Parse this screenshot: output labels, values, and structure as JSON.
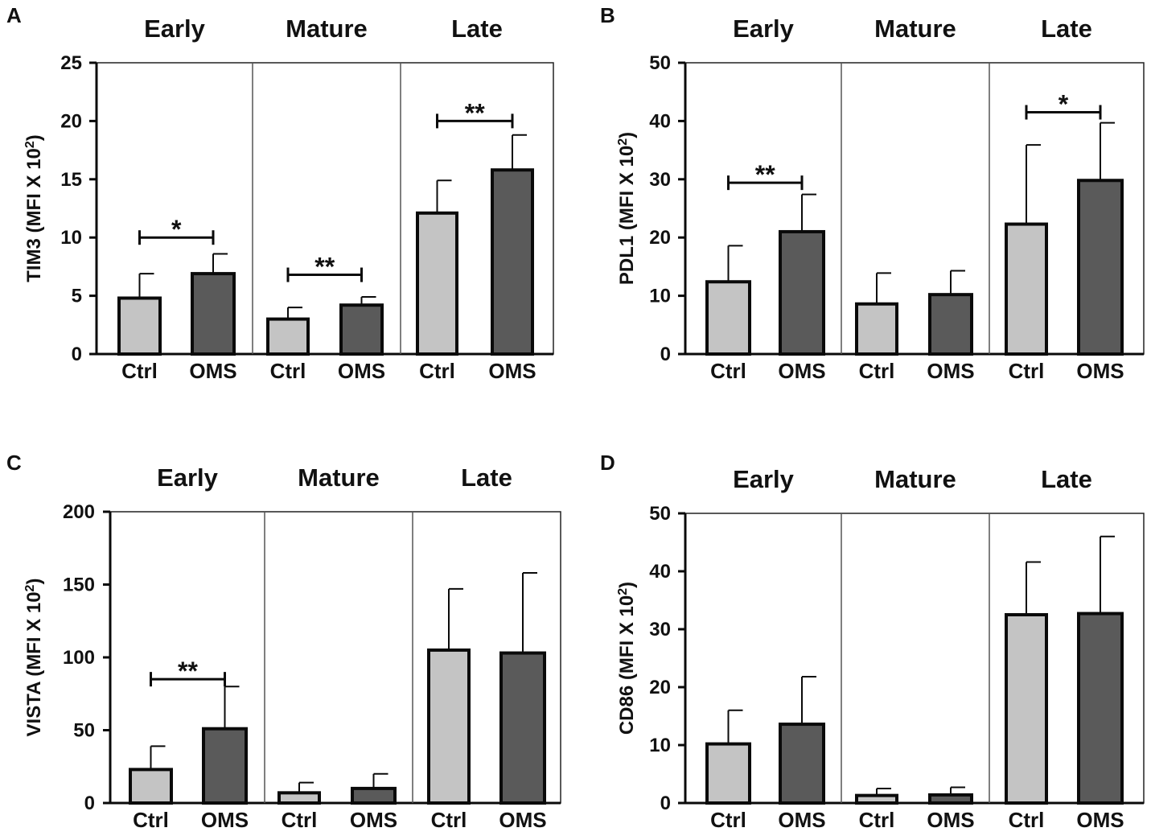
{
  "chart_data": [
    {
      "panel": "A",
      "type": "bar",
      "ylabel": "TIM3 (MFI X 10",
      "ylabel_sup": "2",
      "ylabel_tail": ")",
      "ylim": [
        0,
        25
      ],
      "yticks": [
        0,
        5,
        10,
        15,
        20,
        25
      ],
      "groups": [
        {
          "title": "Early",
          "bars": [
            {
              "label": "Ctrl",
              "value": 4.8,
              "error": 2.1
            },
            {
              "label": "OMS",
              "value": 6.9,
              "error": 1.7
            }
          ],
          "sig": {
            "text": "*",
            "y": 10
          }
        },
        {
          "title": "Mature",
          "bars": [
            {
              "label": "Ctrl",
              "value": 3.0,
              "error": 1.0
            },
            {
              "label": "OMS",
              "value": 4.2,
              "error": 0.7
            }
          ],
          "sig": {
            "text": "**",
            "y": 6.8
          }
        },
        {
          "title": "Late",
          "bars": [
            {
              "label": "Ctrl",
              "value": 12.1,
              "error": 2.8
            },
            {
              "label": "OMS",
              "value": 15.8,
              "error": 3.0
            }
          ],
          "sig": {
            "text": "**",
            "y": 20
          }
        }
      ]
    },
    {
      "panel": "B",
      "type": "bar",
      "ylabel": "PDL1 (MFI X 10",
      "ylabel_sup": "2",
      "ylabel_tail": ")",
      "ylim": [
        0,
        50
      ],
      "yticks": [
        0,
        10,
        20,
        30,
        40,
        50
      ],
      "groups": [
        {
          "title": "Early",
          "bars": [
            {
              "label": "Ctrl",
              "value": 12.4,
              "error": 6.2
            },
            {
              "label": "OMS",
              "value": 21.0,
              "error": 6.4
            }
          ],
          "sig": {
            "text": "**",
            "y": 29.4
          }
        },
        {
          "title": "Mature",
          "bars": [
            {
              "label": "Ctrl",
              "value": 8.6,
              "error": 5.3
            },
            {
              "label": "OMS",
              "value": 10.2,
              "error": 4.1
            }
          ],
          "sig": null
        },
        {
          "title": "Late",
          "bars": [
            {
              "label": "Ctrl",
              "value": 22.3,
              "error": 13.6
            },
            {
              "label": "OMS",
              "value": 29.8,
              "error": 9.9
            }
          ],
          "sig": {
            "text": "*",
            "y": 41.5
          }
        }
      ]
    },
    {
      "panel": "C",
      "type": "bar",
      "ylabel": "VISTA  (MFI X 10",
      "ylabel_sup": "2",
      "ylabel_tail": ")",
      "ylim": [
        0,
        200
      ],
      "yticks": [
        0,
        50,
        100,
        150,
        200
      ],
      "groups": [
        {
          "title": "Early",
          "bars": [
            {
              "label": "Ctrl",
              "value": 23,
              "error": 16
            },
            {
              "label": "OMS",
              "value": 51,
              "error": 29
            }
          ],
          "sig": {
            "text": "**",
            "y": 85
          }
        },
        {
          "title": "Mature",
          "bars": [
            {
              "label": "Ctrl",
              "value": 7,
              "error": 7
            },
            {
              "label": "OMS",
              "value": 10,
              "error": 10
            }
          ],
          "sig": null
        },
        {
          "title": "Late",
          "bars": [
            {
              "label": "Ctrl",
              "value": 105,
              "error": 42
            },
            {
              "label": "OMS",
              "value": 103,
              "error": 55
            }
          ],
          "sig": null
        }
      ]
    },
    {
      "panel": "D",
      "type": "bar",
      "ylabel": "CD86 (MFI X 10",
      "ylabel_sup": "2",
      "ylabel_tail": ")",
      "ylim": [
        0,
        50
      ],
      "yticks": [
        0,
        10,
        20,
        30,
        40,
        50
      ],
      "groups": [
        {
          "title": "Early",
          "bars": [
            {
              "label": "Ctrl",
              "value": 10.2,
              "error": 5.8
            },
            {
              "label": "OMS",
              "value": 13.6,
              "error": 8.2
            }
          ],
          "sig": null
        },
        {
          "title": "Mature",
          "bars": [
            {
              "label": "Ctrl",
              "value": 1.3,
              "error": 1.2
            },
            {
              "label": "OMS",
              "value": 1.4,
              "error": 1.3
            }
          ],
          "sig": null
        },
        {
          "title": "Late",
          "bars": [
            {
              "label": "Ctrl",
              "value": 32.5,
              "error": 9.1
            },
            {
              "label": "OMS",
              "value": 32.7,
              "error": 13.3
            }
          ],
          "sig": null
        }
      ]
    }
  ],
  "colors": {
    "ctrl": "#c4c4c4",
    "oms": "#5a5a5a",
    "stroke": "#0a0a0a",
    "divider": "#555555",
    "frame": "#222222"
  }
}
